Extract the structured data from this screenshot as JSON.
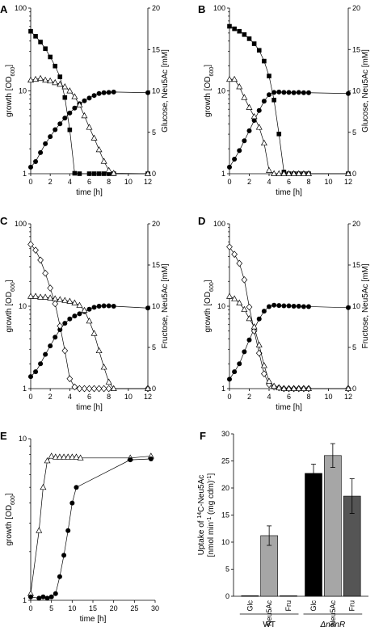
{
  "chart_data": [
    {
      "panel": "A",
      "type": "line",
      "xlabel": "time [h]",
      "ylabel": "growth [OD600]",
      "y2label": "Glucose, Neu5Ac [mM]",
      "xlim": [
        0,
        12
      ],
      "xticks": [
        0,
        2,
        4,
        6,
        8,
        10,
        12
      ],
      "ylim": [
        1,
        100
      ],
      "yscale": "log",
      "yticks": [
        1,
        10,
        100
      ],
      "y2lim": [
        0,
        20
      ],
      "y2ticks": [
        0,
        5,
        10,
        15,
        20
      ],
      "series": [
        {
          "marker": "circle-filled",
          "axis": "left",
          "x": [
            0,
            0.5,
            1,
            1.5,
            2,
            2.5,
            3,
            3.5,
            4,
            4.5,
            5,
            5.5,
            6,
            6.5,
            7,
            7.5,
            8,
            8.5,
            12
          ],
          "y": [
            1.2,
            1.4,
            1.8,
            2.3,
            2.8,
            3.4,
            4.0,
            4.7,
            5.4,
            6.2,
            7.0,
            7.6,
            8.2,
            8.8,
            9.3,
            9.5,
            9.6,
            9.7,
            9.5
          ]
        },
        {
          "marker": "square-filled",
          "axis": "right",
          "x": [
            0,
            0.5,
            1,
            1.5,
            2,
            2.5,
            3,
            3.5,
            4,
            4.5,
            5,
            6,
            6.5,
            7,
            7.5,
            8,
            8.5,
            12
          ],
          "y": [
            17.2,
            16.6,
            15.9,
            15.1,
            14.1,
            13.0,
            11.7,
            9.2,
            5.3,
            0.05,
            0,
            0,
            0,
            0,
            0,
            0,
            0,
            0
          ]
        },
        {
          "marker": "triangle-open",
          "axis": "right",
          "x": [
            0,
            0.5,
            1,
            1.5,
            2,
            2.5,
            3,
            3.5,
            4,
            4.5,
            5,
            5.5,
            6,
            6.5,
            7,
            7.5,
            8,
            8.5,
            12
          ],
          "y": [
            11.3,
            11.4,
            11.5,
            11.3,
            11.2,
            11.0,
            10.8,
            10.5,
            10.0,
            9.3,
            8.3,
            7.0,
            5.6,
            4.3,
            2.9,
            1.5,
            0.4,
            0.05,
            0
          ]
        }
      ]
    },
    {
      "panel": "B",
      "type": "line",
      "xlabel": "time [h]",
      "ylabel": "growth [OD600]",
      "y2label": "Glucose, Neu5Ac [mM]",
      "xlim": [
        0,
        12
      ],
      "xticks": [
        0,
        2,
        4,
        6,
        8,
        10,
        12
      ],
      "ylim": [
        1,
        100
      ],
      "yscale": "log",
      "yticks": [
        1,
        10,
        100
      ],
      "y2lim": [
        0,
        20
      ],
      "y2ticks": [
        0,
        5,
        10,
        15,
        20
      ],
      "series": [
        {
          "marker": "circle-filled",
          "axis": "left",
          "x": [
            0,
            0.5,
            1,
            1.5,
            2,
            2.5,
            3,
            3.5,
            4,
            4.5,
            5,
            5.5,
            6,
            6.5,
            7,
            7.5,
            8,
            12
          ],
          "y": [
            1.2,
            1.5,
            1.9,
            2.5,
            3.3,
            4.4,
            5.8,
            7.5,
            9.0,
            9.6,
            9.7,
            9.6,
            9.6,
            9.5,
            9.6,
            9.5,
            9.5,
            9.3
          ]
        },
        {
          "marker": "square-filled",
          "axis": "right",
          "x": [
            0,
            0.5,
            1,
            1.5,
            2,
            2.5,
            3,
            3.5,
            4,
            4.5,
            5,
            5.5,
            6,
            6.5,
            7,
            7.5,
            8,
            12
          ],
          "y": [
            17.8,
            17.5,
            17.2,
            16.8,
            16.3,
            15.7,
            14.9,
            13.6,
            11.8,
            8.9,
            4.8,
            0.2,
            0,
            0,
            0,
            0,
            0,
            0
          ]
        },
        {
          "marker": "triangle-open",
          "axis": "right",
          "x": [
            0,
            0.5,
            1,
            1.5,
            2,
            2.5,
            3,
            3.5,
            4,
            4.5,
            5,
            5.5,
            6,
            6.5,
            7,
            7.5,
            8,
            12
          ],
          "y": [
            11.4,
            11.4,
            10.5,
            9.2,
            8.0,
            6.9,
            5.6,
            3.7,
            0.4,
            0,
            0,
            0,
            0,
            0,
            0,
            0,
            0,
            0
          ]
        }
      ]
    },
    {
      "panel": "C",
      "type": "line",
      "xlabel": "time [h]",
      "ylabel": "growth [OD600]",
      "y2label": "Fructose, Neu5Ac [mM]",
      "xlim": [
        0,
        12
      ],
      "xticks": [
        0,
        2,
        4,
        6,
        8,
        10,
        12
      ],
      "ylim": [
        1,
        100
      ],
      "yscale": "log",
      "yticks": [
        1,
        10,
        100
      ],
      "y2lim": [
        0,
        20
      ],
      "y2ticks": [
        0,
        5,
        10,
        15,
        20
      ],
      "series": [
        {
          "marker": "circle-filled",
          "axis": "left",
          "x": [
            0,
            0.5,
            1,
            1.5,
            2,
            2.5,
            3,
            3.5,
            4,
            4.5,
            5,
            5.5,
            6,
            6.5,
            7,
            7.5,
            8,
            8.5,
            12
          ],
          "y": [
            1.4,
            1.6,
            2.0,
            2.6,
            3.3,
            4.2,
            5.2,
            6.2,
            7.0,
            7.6,
            8.1,
            8.6,
            9.2,
            9.7,
            10.0,
            10.1,
            10.1,
            10.0,
            9.5
          ]
        },
        {
          "marker": "diamond-open",
          "axis": "right",
          "x": [
            0,
            0.5,
            1,
            1.5,
            2,
            2.5,
            3,
            3.5,
            4,
            4.5,
            5,
            5.5,
            6,
            6.5,
            7,
            7.5,
            8,
            12
          ],
          "y": [
            17.5,
            16.8,
            15.6,
            14.0,
            12.2,
            10.3,
            7.6,
            4.6,
            1.2,
            0.2,
            0,
            0,
            0,
            0,
            0,
            0,
            0,
            0
          ]
        },
        {
          "marker": "triangle-open",
          "axis": "right",
          "x": [
            0,
            0.5,
            1,
            1.5,
            2,
            2.5,
            3,
            3.5,
            4,
            4.5,
            5,
            5.5,
            6,
            6.5,
            7,
            7.5,
            8,
            8.5,
            12
          ],
          "y": [
            11.2,
            11.2,
            11.1,
            11.1,
            11.0,
            10.9,
            10.8,
            10.7,
            10.6,
            10.4,
            10.1,
            9.5,
            8.2,
            6.7,
            4.6,
            2.6,
            0.8,
            0,
            0
          ]
        }
      ]
    },
    {
      "panel": "D",
      "type": "line",
      "xlabel": "time [h]",
      "ylabel": "growth [OD600]",
      "y2label": "Fructose, Neu5Ac [mM]",
      "xlim": [
        0,
        12
      ],
      "xticks": [
        0,
        2,
        4,
        6,
        8,
        10,
        12
      ],
      "ylim": [
        1,
        100
      ],
      "yscale": "log",
      "yticks": [
        1,
        10,
        100
      ],
      "y2lim": [
        0,
        20
      ],
      "y2ticks": [
        0,
        5,
        10,
        15,
        20
      ],
      "series": [
        {
          "marker": "circle-filled",
          "axis": "left",
          "x": [
            0,
            0.5,
            1,
            1.5,
            2,
            2.5,
            3,
            3.5,
            4,
            4.5,
            5,
            5.5,
            6,
            6.5,
            7,
            7.5,
            8,
            12
          ],
          "y": [
            1.3,
            1.6,
            2.0,
            2.8,
            3.9,
            5.3,
            7.0,
            8.7,
            9.9,
            10.3,
            10.2,
            10.1,
            10.1,
            10.0,
            10.0,
            9.9,
            9.9,
            9.6
          ]
        },
        {
          "marker": "diamond-open",
          "axis": "right",
          "x": [
            0,
            0.5,
            1,
            1.5,
            2,
            2.5,
            3,
            3.5,
            4,
            4.5,
            5,
            5.5,
            6,
            6.5,
            7,
            7.5,
            8,
            12
          ],
          "y": [
            17.2,
            16.3,
            15.2,
            13.2,
            9.9,
            7.0,
            4.3,
            1.8,
            0.5,
            0.2,
            0.1,
            0,
            0,
            0,
            0,
            0,
            0,
            0
          ]
        },
        {
          "marker": "triangle-open",
          "axis": "right",
          "x": [
            0,
            0.5,
            1,
            1.5,
            2,
            2.5,
            3,
            3.5,
            4,
            4.5,
            5,
            5.5,
            6,
            6.5,
            7,
            7.5,
            8,
            12
          ],
          "y": [
            11.2,
            10.9,
            10.4,
            9.6,
            8.5,
            7.5,
            5.3,
            2.8,
            0.9,
            0.3,
            0.1,
            0,
            0,
            0,
            0,
            0,
            0,
            0
          ]
        }
      ]
    },
    {
      "panel": "E",
      "type": "line",
      "xlabel": "time [h]",
      "ylabel": "growth [OD600]",
      "xlim": [
        0,
        30
      ],
      "xticks": [
        0,
        5,
        10,
        15,
        20,
        25,
        30
      ],
      "ylim": [
        1,
        10
      ],
      "yscale": "log",
      "yticks": [
        1,
        10
      ],
      "series": [
        {
          "marker": "triangle-open",
          "axis": "left",
          "x": [
            0,
            2,
            3,
            4,
            5,
            6,
            7,
            8,
            9,
            10,
            11,
            12,
            24,
            29
          ],
          "y": [
            1.1,
            2.7,
            5.0,
            7.3,
            7.8,
            7.7,
            7.7,
            7.7,
            7.7,
            7.7,
            7.7,
            7.6,
            7.6,
            7.8
          ]
        },
        {
          "marker": "circle-filled",
          "axis": "left",
          "x": [
            0,
            2,
            3,
            4,
            5,
            6,
            7,
            8,
            9,
            10,
            11,
            24,
            29
          ],
          "y": [
            1.05,
            1.03,
            1.05,
            1.03,
            1.05,
            1.1,
            1.4,
            1.9,
            2.7,
            4.0,
            5.0,
            7.4,
            7.5
          ]
        }
      ]
    },
    {
      "panel": "F",
      "type": "bar",
      "ylabel": "Uptake of 14C-Neu5Ac [nmol min-1 (mg cdm)-1]",
      "ylim": [
        0,
        30
      ],
      "yticks": [
        0,
        5,
        10,
        15,
        20,
        25,
        30
      ],
      "categories": [
        "Glc",
        "Neu5Ac",
        "Fru",
        "Glc",
        "Neu5Ac",
        "Fru"
      ],
      "groups": [
        {
          "label": "WT",
          "members": [
            0,
            1,
            2
          ]
        },
        {
          "label": "ΔnanR",
          "members": [
            3,
            4,
            5
          ]
        }
      ],
      "values": [
        0.1,
        11.2,
        0.1,
        22.7,
        26.0,
        18.5
      ],
      "errors": [
        0,
        1.8,
        0,
        1.7,
        2.2,
        3.2
      ],
      "bar_colors": [
        "#000000",
        "#a6a6a6",
        "#555555",
        "#000000",
        "#a6a6a6",
        "#555555"
      ]
    }
  ]
}
